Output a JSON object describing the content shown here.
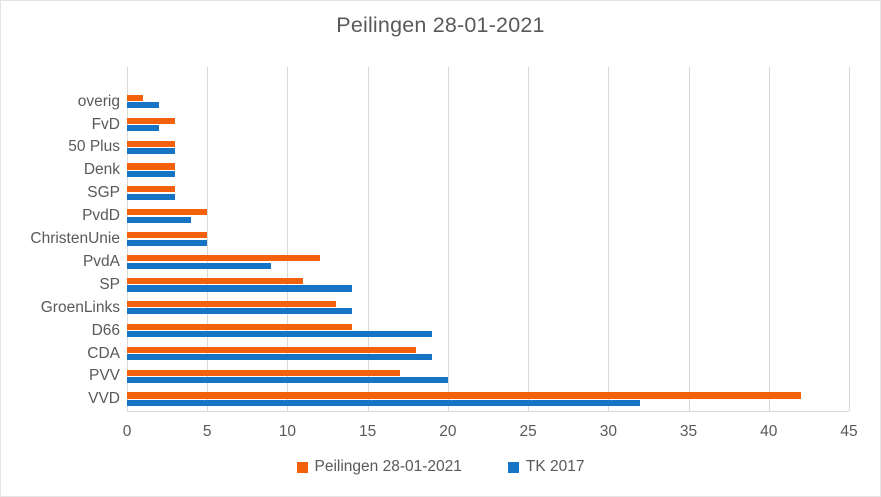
{
  "title": "Peilingen 28-01-2021",
  "colors": {
    "series_peilingen": "#F4610D",
    "series_tk2017": "#1574C4",
    "text": "#595959",
    "gridline": "#D9D9D9",
    "background": "#FFFFFF"
  },
  "chart_data": {
    "type": "bar",
    "orientation": "horizontal",
    "title": "Peilingen 28-01-2021",
    "categories": [
      "overig",
      "FvD",
      "50 Plus",
      "Denk",
      "SGP",
      "PvdD",
      "ChristenUnie",
      "PvdA",
      "SP",
      "GroenLinks",
      "D66",
      "CDA",
      "PVV",
      "VVD"
    ],
    "categories_order": "top-to-bottom",
    "series": [
      {
        "name": "Peilingen 28-01-2021",
        "color": "#F4610D",
        "values": [
          1,
          3,
          3,
          3,
          3,
          5,
          5,
          12,
          11,
          13,
          14,
          18,
          17,
          42
        ]
      },
      {
        "name": "TK 2017",
        "color": "#1574C4",
        "values": [
          2,
          2,
          3,
          3,
          3,
          4,
          5,
          9,
          14,
          14,
          19,
          19,
          20,
          32
        ]
      }
    ],
    "x_axis": {
      "min": 0,
      "max": 45,
      "tick_step": 5,
      "tick_labels": [
        "0",
        "5",
        "10",
        "15",
        "20",
        "25",
        "30",
        "35",
        "40",
        "45"
      ]
    },
    "y_axis_label": "",
    "x_axis_label": "",
    "grid": true,
    "legend_position": "bottom"
  },
  "legend": {
    "items": [
      {
        "label": "Peilingen 28-01-2021"
      },
      {
        "label": "TK 2017"
      }
    ]
  }
}
